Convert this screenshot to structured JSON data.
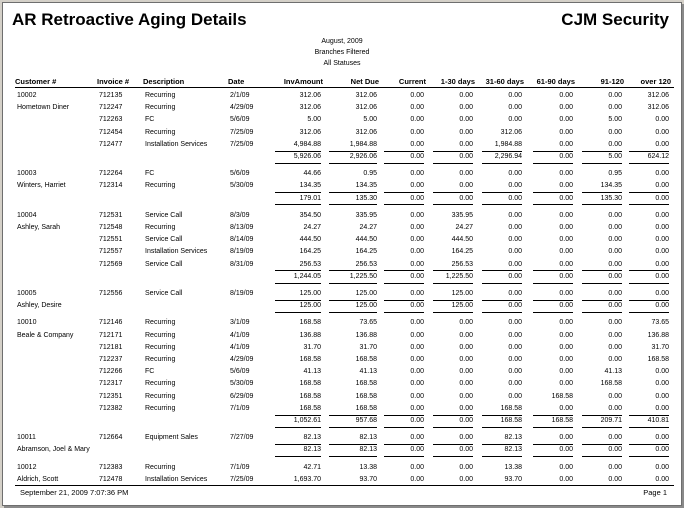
{
  "report": {
    "title": "AR Retroactive Aging Details",
    "company": "CJM Security",
    "period": "August, 2009",
    "filter_branches": "Branches Filtered",
    "filter_status": "All Statuses"
  },
  "columns": [
    "Customer #",
    "Invoice #",
    "Description",
    "Date",
    "InvAmount",
    "Net Due",
    "Current",
    "1-30 days",
    "31-60 days",
    "61-90 days",
    "91-120",
    "over 120"
  ],
  "customers": [
    {
      "number": "10002",
      "name": "Hometown Diner",
      "rows": [
        [
          "712135",
          "Recurring",
          "2/1/09",
          "312.06",
          "312.06",
          "0.00",
          "0.00",
          "0.00",
          "0.00",
          "0.00",
          "312.06"
        ],
        [
          "712247",
          "Recurring",
          "4/29/09",
          "312.06",
          "312.06",
          "0.00",
          "0.00",
          "0.00",
          "0.00",
          "0.00",
          "312.06"
        ],
        [
          "712263",
          "FC",
          "5/6/09",
          "5.00",
          "5.00",
          "0.00",
          "0.00",
          "0.00",
          "0.00",
          "5.00",
          "0.00"
        ],
        [
          "712454",
          "Recurring",
          "7/25/09",
          "312.06",
          "312.06",
          "0.00",
          "0.00",
          "312.06",
          "0.00",
          "0.00",
          "0.00"
        ],
        [
          "712477",
          "Installation Services",
          "7/25/09",
          "4,984.88",
          "1,984.88",
          "0.00",
          "0.00",
          "1,984.88",
          "0.00",
          "0.00",
          "0.00"
        ]
      ],
      "totals": [
        "5,926.06",
        "2,926.06",
        "0.00",
        "0.00",
        "2,296.94",
        "0.00",
        "5.00",
        "624.12"
      ]
    },
    {
      "number": "10003",
      "name": "Winters, Harriet",
      "rows": [
        [
          "712264",
          "FC",
          "5/6/09",
          "44.66",
          "0.95",
          "0.00",
          "0.00",
          "0.00",
          "0.00",
          "0.95",
          "0.00"
        ],
        [
          "712314",
          "Recurring",
          "5/30/09",
          "134.35",
          "134.35",
          "0.00",
          "0.00",
          "0.00",
          "0.00",
          "134.35",
          "0.00"
        ]
      ],
      "totals": [
        "179.01",
        "135.30",
        "0.00",
        "0.00",
        "0.00",
        "0.00",
        "135.30",
        "0.00"
      ]
    },
    {
      "number": "10004",
      "name": "Ashley, Sarah",
      "rows": [
        [
          "712531",
          "Service Call",
          "8/3/09",
          "354.50",
          "335.95",
          "0.00",
          "335.95",
          "0.00",
          "0.00",
          "0.00",
          "0.00"
        ],
        [
          "712548",
          "Recurring",
          "8/13/09",
          "24.27",
          "24.27",
          "0.00",
          "24.27",
          "0.00",
          "0.00",
          "0.00",
          "0.00"
        ],
        [
          "712551",
          "Service Call",
          "8/14/09",
          "444.50",
          "444.50",
          "0.00",
          "444.50",
          "0.00",
          "0.00",
          "0.00",
          "0.00"
        ],
        [
          "712557",
          "Installation Services",
          "8/19/09",
          "164.25",
          "164.25",
          "0.00",
          "164.25",
          "0.00",
          "0.00",
          "0.00",
          "0.00"
        ],
        [
          "712569",
          "Service Call",
          "8/31/09",
          "256.53",
          "256.53",
          "0.00",
          "256.53",
          "0.00",
          "0.00",
          "0.00",
          "0.00"
        ]
      ],
      "totals": [
        "1,244.05",
        "1,225.50",
        "0.00",
        "1,225.50",
        "0.00",
        "0.00",
        "0.00",
        "0.00"
      ]
    },
    {
      "number": "10005",
      "name": "Ashley, Desire",
      "rows": [
        [
          "712556",
          "Service Call",
          "8/19/09",
          "125.00",
          "125.00",
          "0.00",
          "125.00",
          "0.00",
          "0.00",
          "0.00",
          "0.00"
        ]
      ],
      "totals": [
        "125.00",
        "125.00",
        "0.00",
        "125.00",
        "0.00",
        "0.00",
        "0.00",
        "0.00"
      ]
    },
    {
      "number": "10010",
      "name": "Beale & Company",
      "rows": [
        [
          "712146",
          "Recurring",
          "3/1/09",
          "168.58",
          "73.65",
          "0.00",
          "0.00",
          "0.00",
          "0.00",
          "0.00",
          "73.65"
        ],
        [
          "712171",
          "Recurring",
          "4/1/09",
          "136.88",
          "136.88",
          "0.00",
          "0.00",
          "0.00",
          "0.00",
          "0.00",
          "136.88"
        ],
        [
          "712181",
          "Recurring",
          "4/1/09",
          "31.70",
          "31.70",
          "0.00",
          "0.00",
          "0.00",
          "0.00",
          "0.00",
          "31.70"
        ],
        [
          "712237",
          "Recurring",
          "4/29/09",
          "168.58",
          "168.58",
          "0.00",
          "0.00",
          "0.00",
          "0.00",
          "0.00",
          "168.58"
        ],
        [
          "712266",
          "FC",
          "5/6/09",
          "41.13",
          "41.13",
          "0.00",
          "0.00",
          "0.00",
          "0.00",
          "41.13",
          "0.00"
        ],
        [
          "712317",
          "Recurring",
          "5/30/09",
          "168.58",
          "168.58",
          "0.00",
          "0.00",
          "0.00",
          "0.00",
          "168.58",
          "0.00"
        ],
        [
          "712351",
          "Recurring",
          "6/29/09",
          "168.58",
          "168.58",
          "0.00",
          "0.00",
          "0.00",
          "168.58",
          "0.00",
          "0.00"
        ],
        [
          "712382",
          "Recurring",
          "7/1/09",
          "168.58",
          "168.58",
          "0.00",
          "0.00",
          "168.58",
          "0.00",
          "0.00",
          "0.00"
        ]
      ],
      "totals": [
        "1,052.61",
        "957.68",
        "0.00",
        "0.00",
        "168.58",
        "168.58",
        "209.71",
        "410.81"
      ]
    },
    {
      "number": "10011",
      "name": "Abramson, Joel & Mary",
      "rows": [
        [
          "712664",
          "Equipment Sales",
          "7/27/09",
          "82.13",
          "82.13",
          "0.00",
          "0.00",
          "82.13",
          "0.00",
          "0.00",
          "0.00"
        ]
      ],
      "totals": [
        "82.13",
        "82.13",
        "0.00",
        "0.00",
        "82.13",
        "0.00",
        "0.00",
        "0.00"
      ]
    },
    {
      "number": "10012",
      "name": "Aldrich, Scott",
      "rows": [
        [
          "712383",
          "Recurring",
          "7/1/09",
          "42.71",
          "13.38",
          "0.00",
          "0.00",
          "13.38",
          "0.00",
          "0.00",
          "0.00"
        ],
        [
          "712478",
          "Installation Services",
          "7/25/09",
          "1,693.70",
          "93.70",
          "0.00",
          "0.00",
          "93.70",
          "0.00",
          "0.00",
          "0.00"
        ]
      ]
    }
  ],
  "footer": {
    "printed": "September 21, 2009 7:07:36 PM",
    "page": "Page 1"
  }
}
